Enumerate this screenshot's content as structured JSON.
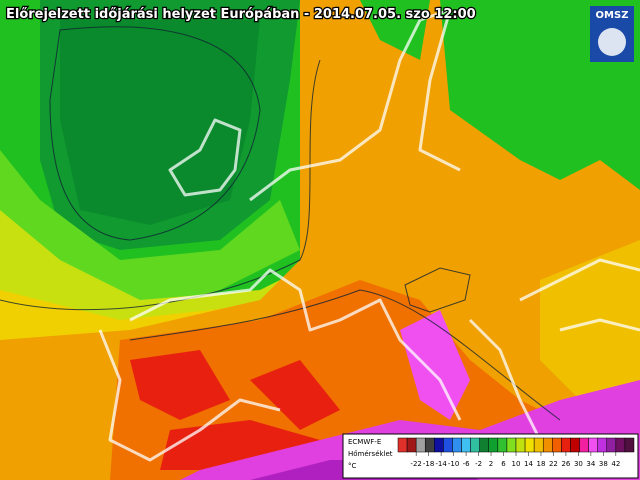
{
  "header": {
    "title": "Előrejelzett időjárási helyzet Európában - 2014.07.05. szo 12:00",
    "logo": "OMSZ"
  },
  "legend": {
    "model": "ECMWF-E",
    "quantity": "Hőmérséklet",
    "unit": "°C",
    "ticks": [
      -22,
      -18,
      -14,
      -10,
      -6,
      -2,
      2,
      6,
      10,
      14,
      18,
      22,
      26,
      30,
      34,
      38,
      42
    ],
    "colors": [
      "#e0302a",
      "#a01818",
      "#a0a0a0",
      "#404040",
      "#1010a0",
      "#2050e0",
      "#3090f0",
      "#40c0f0",
      "#30c0a0",
      "#108030",
      "#10a030",
      "#30c030",
      "#80e020",
      "#c0e010",
      "#f0e000",
      "#f0c000",
      "#f09000",
      "#f06000",
      "#e82010",
      "#c00000",
      "#f020a0",
      "#f050f0",
      "#c030e0",
      "#9020a0",
      "#701060",
      "#501040"
    ]
  }
}
